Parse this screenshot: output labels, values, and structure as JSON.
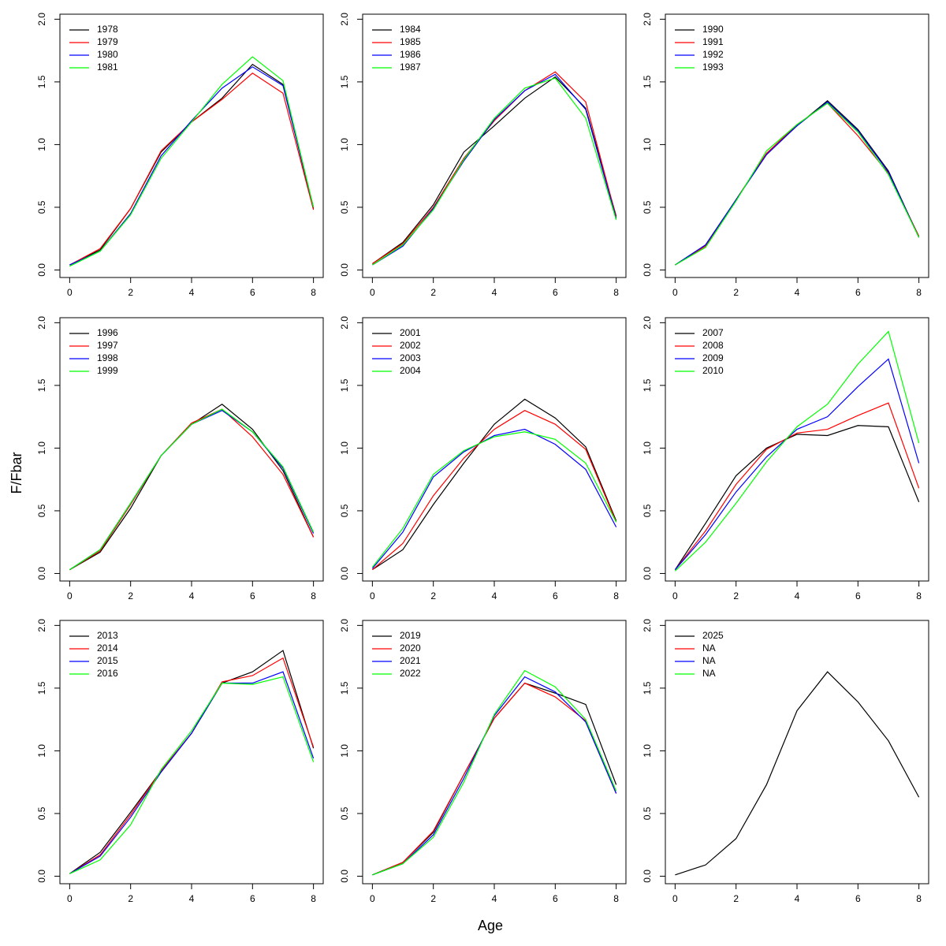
{
  "xlabel": "Age",
  "ylabel": "F/Fbar",
  "chart_data": [
    {
      "type": "line",
      "x": [
        0,
        1,
        2,
        3,
        4,
        5,
        6,
        7,
        8
      ],
      "xlim": [
        -0.32,
        8.32
      ],
      "xticks": [
        0,
        2,
        4,
        6,
        8
      ],
      "ylim": [
        -0.06,
        2.04
      ],
      "yticks": [
        {
          "value": 0,
          "label": "0.0"
        },
        {
          "value": 0.5,
          "label": "0.5"
        },
        {
          "value": 1,
          "label": "1.0"
        },
        {
          "value": 1.5,
          "label": "1.5"
        },
        {
          "value": 2,
          "label": "2.0"
        }
      ],
      "legend": "top-left",
      "series": [
        {
          "name": "1978",
          "color": "#000000",
          "values": [
            0.04,
            0.16,
            0.49,
            0.94,
            1.18,
            1.37,
            1.64,
            1.48,
            0.49
          ]
        },
        {
          "name": "1979",
          "color": "#ff0000",
          "values": [
            0.04,
            0.17,
            0.49,
            0.95,
            1.18,
            1.36,
            1.57,
            1.41,
            0.48
          ]
        },
        {
          "name": "1980",
          "color": "#0000ff",
          "values": [
            0.04,
            0.15,
            0.45,
            0.91,
            1.19,
            1.45,
            1.62,
            1.47,
            0.5
          ]
        },
        {
          "name": "1981",
          "color": "#00ff00",
          "values": [
            0.03,
            0.15,
            0.44,
            0.89,
            1.18,
            1.48,
            1.7,
            1.51,
            0.5
          ]
        }
      ]
    },
    {
      "type": "line",
      "x": [
        0,
        1,
        2,
        3,
        4,
        5,
        6,
        7,
        8
      ],
      "xlim": [
        -0.32,
        8.32
      ],
      "xticks": [
        0,
        2,
        4,
        6,
        8
      ],
      "ylim": [
        -0.06,
        2.04
      ],
      "yticks": [
        {
          "value": 0,
          "label": "0.0"
        },
        {
          "value": 0.5,
          "label": "0.5"
        },
        {
          "value": 1,
          "label": "1.0"
        },
        {
          "value": 1.5,
          "label": "1.5"
        },
        {
          "value": 2,
          "label": "2.0"
        }
      ],
      "legend": "top-left",
      "series": [
        {
          "name": "1984",
          "color": "#000000",
          "values": [
            0.05,
            0.22,
            0.52,
            0.94,
            1.15,
            1.37,
            1.54,
            1.29,
            0.43
          ]
        },
        {
          "name": "1985",
          "color": "#ff0000",
          "values": [
            0.05,
            0.21,
            0.5,
            0.89,
            1.19,
            1.43,
            1.58,
            1.34,
            0.42
          ]
        },
        {
          "name": "1986",
          "color": "#0000ff",
          "values": [
            0.04,
            0.19,
            0.49,
            0.87,
            1.2,
            1.43,
            1.56,
            1.28,
            0.41
          ]
        },
        {
          "name": "1987",
          "color": "#00ff00",
          "values": [
            0.04,
            0.2,
            0.48,
            0.88,
            1.21,
            1.45,
            1.53,
            1.21,
            0.4
          ]
        }
      ]
    },
    {
      "type": "line",
      "x": [
        0,
        1,
        2,
        3,
        4,
        5,
        6,
        7,
        8
      ],
      "xlim": [
        -0.32,
        8.32
      ],
      "xticks": [
        0,
        2,
        4,
        6,
        8
      ],
      "ylim": [
        -0.06,
        2.04
      ],
      "yticks": [
        {
          "value": 0,
          "label": "0.0"
        },
        {
          "value": 0.5,
          "label": "0.5"
        },
        {
          "value": 1,
          "label": "1.0"
        },
        {
          "value": 1.5,
          "label": "1.5"
        },
        {
          "value": 2,
          "label": "2.0"
        }
      ],
      "legend": "top-left",
      "series": [
        {
          "name": "1990",
          "color": "#000000",
          "values": [
            0.04,
            0.2,
            0.56,
            0.93,
            1.15,
            1.35,
            1.12,
            0.79,
            0.26
          ]
        },
        {
          "name": "1991",
          "color": "#ff0000",
          "values": [
            0.04,
            0.19,
            0.56,
            0.93,
            1.16,
            1.33,
            1.07,
            0.77,
            0.27
          ]
        },
        {
          "name": "1992",
          "color": "#0000ff",
          "values": [
            0.04,
            0.2,
            0.56,
            0.92,
            1.15,
            1.34,
            1.11,
            0.78,
            0.26
          ]
        },
        {
          "name": "1993",
          "color": "#00ff00",
          "values": [
            0.04,
            0.18,
            0.55,
            0.95,
            1.16,
            1.33,
            1.1,
            0.76,
            0.26
          ]
        }
      ]
    },
    {
      "type": "line",
      "x": [
        0,
        1,
        2,
        3,
        4,
        5,
        6,
        7,
        8
      ],
      "xlim": [
        -0.32,
        8.32
      ],
      "xticks": [
        0,
        2,
        4,
        6,
        8
      ],
      "ylim": [
        -0.06,
        2.04
      ],
      "yticks": [
        {
          "value": 0,
          "label": "0.0"
        },
        {
          "value": 0.5,
          "label": "0.5"
        },
        {
          "value": 1,
          "label": "1.0"
        },
        {
          "value": 1.5,
          "label": "1.5"
        },
        {
          "value": 2,
          "label": "2.0"
        }
      ],
      "legend": "top-left",
      "series": [
        {
          "name": "1996",
          "color": "#000000",
          "values": [
            0.03,
            0.17,
            0.52,
            0.94,
            1.19,
            1.35,
            1.15,
            0.82,
            0.29
          ]
        },
        {
          "name": "1997",
          "color": "#ff0000",
          "values": [
            0.03,
            0.18,
            0.55,
            0.94,
            1.2,
            1.31,
            1.09,
            0.79,
            0.29
          ]
        },
        {
          "name": "1998",
          "color": "#0000ff",
          "values": [
            0.03,
            0.19,
            0.56,
            0.94,
            1.19,
            1.3,
            1.13,
            0.84,
            0.32
          ]
        },
        {
          "name": "1999",
          "color": "#00ff00",
          "values": [
            0.03,
            0.19,
            0.56,
            0.94,
            1.19,
            1.31,
            1.13,
            0.85,
            0.33
          ]
        }
      ]
    },
    {
      "type": "line",
      "x": [
        0,
        1,
        2,
        3,
        4,
        5,
        6,
        7,
        8
      ],
      "xlim": [
        -0.32,
        8.32
      ],
      "xticks": [
        0,
        2,
        4,
        6,
        8
      ],
      "ylim": [
        -0.06,
        2.04
      ],
      "yticks": [
        {
          "value": 0,
          "label": "0.0"
        },
        {
          "value": 0.5,
          "label": "0.5"
        },
        {
          "value": 1,
          "label": "1.0"
        },
        {
          "value": 1.5,
          "label": "1.5"
        },
        {
          "value": 2,
          "label": "2.0"
        }
      ],
      "legend": "top-left",
      "series": [
        {
          "name": "2001",
          "color": "#000000",
          "values": [
            0.03,
            0.19,
            0.55,
            0.88,
            1.19,
            1.39,
            1.24,
            1.01,
            0.42
          ]
        },
        {
          "name": "2002",
          "color": "#ff0000",
          "values": [
            0.03,
            0.24,
            0.62,
            0.92,
            1.15,
            1.3,
            1.19,
            0.99,
            0.41
          ]
        },
        {
          "name": "2003",
          "color": "#0000ff",
          "values": [
            0.04,
            0.33,
            0.77,
            0.97,
            1.1,
            1.15,
            1.03,
            0.83,
            0.37
          ]
        },
        {
          "name": "2004",
          "color": "#00ff00",
          "values": [
            0.05,
            0.36,
            0.79,
            0.98,
            1.09,
            1.13,
            1.07,
            0.88,
            0.41
          ]
        }
      ]
    },
    {
      "type": "line",
      "x": [
        0,
        1,
        2,
        3,
        4,
        5,
        6,
        7,
        8
      ],
      "xlim": [
        -0.32,
        8.32
      ],
      "xticks": [
        0,
        2,
        4,
        6,
        8
      ],
      "ylim": [
        -0.06,
        2.04
      ],
      "yticks": [
        {
          "value": 0,
          "label": "0.0"
        },
        {
          "value": 0.5,
          "label": "0.5"
        },
        {
          "value": 1,
          "label": "1.0"
        },
        {
          "value": 1.5,
          "label": "1.5"
        },
        {
          "value": 2,
          "label": "2.0"
        }
      ],
      "legend": "top-left",
      "series": [
        {
          "name": "2007",
          "color": "#000000",
          "values": [
            0.03,
            0.4,
            0.78,
            1.0,
            1.11,
            1.1,
            1.18,
            1.17,
            0.57
          ]
        },
        {
          "name": "2008",
          "color": "#ff0000",
          "values": [
            0.03,
            0.34,
            0.71,
            0.99,
            1.12,
            1.15,
            1.26,
            1.36,
            0.68
          ]
        },
        {
          "name": "2009",
          "color": "#0000ff",
          "values": [
            0.03,
            0.31,
            0.65,
            0.93,
            1.15,
            1.25,
            1.49,
            1.71,
            0.88
          ]
        },
        {
          "name": "2010",
          "color": "#00ff00",
          "values": [
            0.02,
            0.25,
            0.56,
            0.89,
            1.17,
            1.35,
            1.67,
            1.93,
            1.04
          ]
        }
      ]
    },
    {
      "type": "line",
      "x": [
        0,
        1,
        2,
        3,
        4,
        5,
        6,
        7,
        8
      ],
      "xlim": [
        -0.32,
        8.32
      ],
      "xticks": [
        0,
        2,
        4,
        6,
        8
      ],
      "ylim": [
        -0.06,
        2.04
      ],
      "yticks": [
        {
          "value": 0,
          "label": "0.0"
        },
        {
          "value": 0.5,
          "label": "0.5"
        },
        {
          "value": 1,
          "label": "1.0"
        },
        {
          "value": 1.5,
          "label": "1.5"
        },
        {
          "value": 2,
          "label": "2.0"
        }
      ],
      "legend": "top-left",
      "series": [
        {
          "name": "2013",
          "color": "#000000",
          "values": [
            0.02,
            0.19,
            0.51,
            0.84,
            1.14,
            1.54,
            1.63,
            1.8,
            1.02
          ]
        },
        {
          "name": "2014",
          "color": "#ff0000",
          "values": [
            0.02,
            0.17,
            0.49,
            0.84,
            1.14,
            1.55,
            1.6,
            1.74,
            1.03
          ]
        },
        {
          "name": "2015",
          "color": "#0000ff",
          "values": [
            0.02,
            0.16,
            0.47,
            0.83,
            1.14,
            1.54,
            1.54,
            1.63,
            0.94
          ]
        },
        {
          "name": "2016",
          "color": "#00ff00",
          "values": [
            0.02,
            0.13,
            0.41,
            0.85,
            1.16,
            1.54,
            1.53,
            1.59,
            0.91
          ]
        }
      ]
    },
    {
      "type": "line",
      "x": [
        0,
        1,
        2,
        3,
        4,
        5,
        6,
        7,
        8
      ],
      "xlim": [
        -0.32,
        8.32
      ],
      "xticks": [
        0,
        2,
        4,
        6,
        8
      ],
      "ylim": [
        -0.06,
        2.04
      ],
      "yticks": [
        {
          "value": 0,
          "label": "0.0"
        },
        {
          "value": 0.5,
          "label": "0.5"
        },
        {
          "value": 1,
          "label": "1.0"
        },
        {
          "value": 1.5,
          "label": "1.5"
        },
        {
          "value": 2,
          "label": "2.0"
        }
      ],
      "legend": "top-left",
      "series": [
        {
          "name": "2019",
          "color": "#000000",
          "values": [
            0.01,
            0.11,
            0.35,
            0.81,
            1.26,
            1.54,
            1.46,
            1.37,
            0.73
          ]
        },
        {
          "name": "2020",
          "color": "#ff0000",
          "values": [
            0.01,
            0.11,
            0.36,
            0.81,
            1.26,
            1.54,
            1.43,
            1.24,
            0.66
          ]
        },
        {
          "name": "2021",
          "color": "#0000ff",
          "values": [
            0.01,
            0.1,
            0.33,
            0.78,
            1.28,
            1.59,
            1.47,
            1.23,
            0.66
          ]
        },
        {
          "name": "2022",
          "color": "#00ff00",
          "values": [
            0.01,
            0.1,
            0.31,
            0.75,
            1.29,
            1.64,
            1.51,
            1.25,
            0.68
          ]
        }
      ]
    },
    {
      "type": "line",
      "x": [
        0,
        1,
        2,
        3,
        4,
        5,
        6,
        7,
        8
      ],
      "xlim": [
        -0.32,
        8.32
      ],
      "xticks": [
        0,
        2,
        4,
        6,
        8
      ],
      "ylim": [
        -0.06,
        2.04
      ],
      "yticks": [
        {
          "value": 0,
          "label": "0.0"
        },
        {
          "value": 0.5,
          "label": "0.5"
        },
        {
          "value": 1,
          "label": "1.0"
        },
        {
          "value": 1.5,
          "label": "1.5"
        },
        {
          "value": 2,
          "label": "2.0"
        }
      ],
      "legend": "top-left",
      "series": [
        {
          "name": "2025",
          "color": "#000000",
          "values": [
            0.01,
            0.09,
            0.3,
            0.73,
            1.32,
            1.63,
            1.39,
            1.08,
            0.63
          ]
        },
        {
          "name": "NA",
          "color": "#ff0000",
          "values": [
            null,
            null,
            null,
            null,
            null,
            null,
            null,
            null,
            null
          ]
        },
        {
          "name": "NA",
          "color": "#0000ff",
          "values": [
            null,
            null,
            null,
            null,
            null,
            null,
            null,
            null,
            null
          ]
        },
        {
          "name": "NA",
          "color": "#00ff00",
          "values": [
            null,
            null,
            null,
            null,
            null,
            null,
            null,
            null,
            null
          ]
        }
      ]
    }
  ]
}
